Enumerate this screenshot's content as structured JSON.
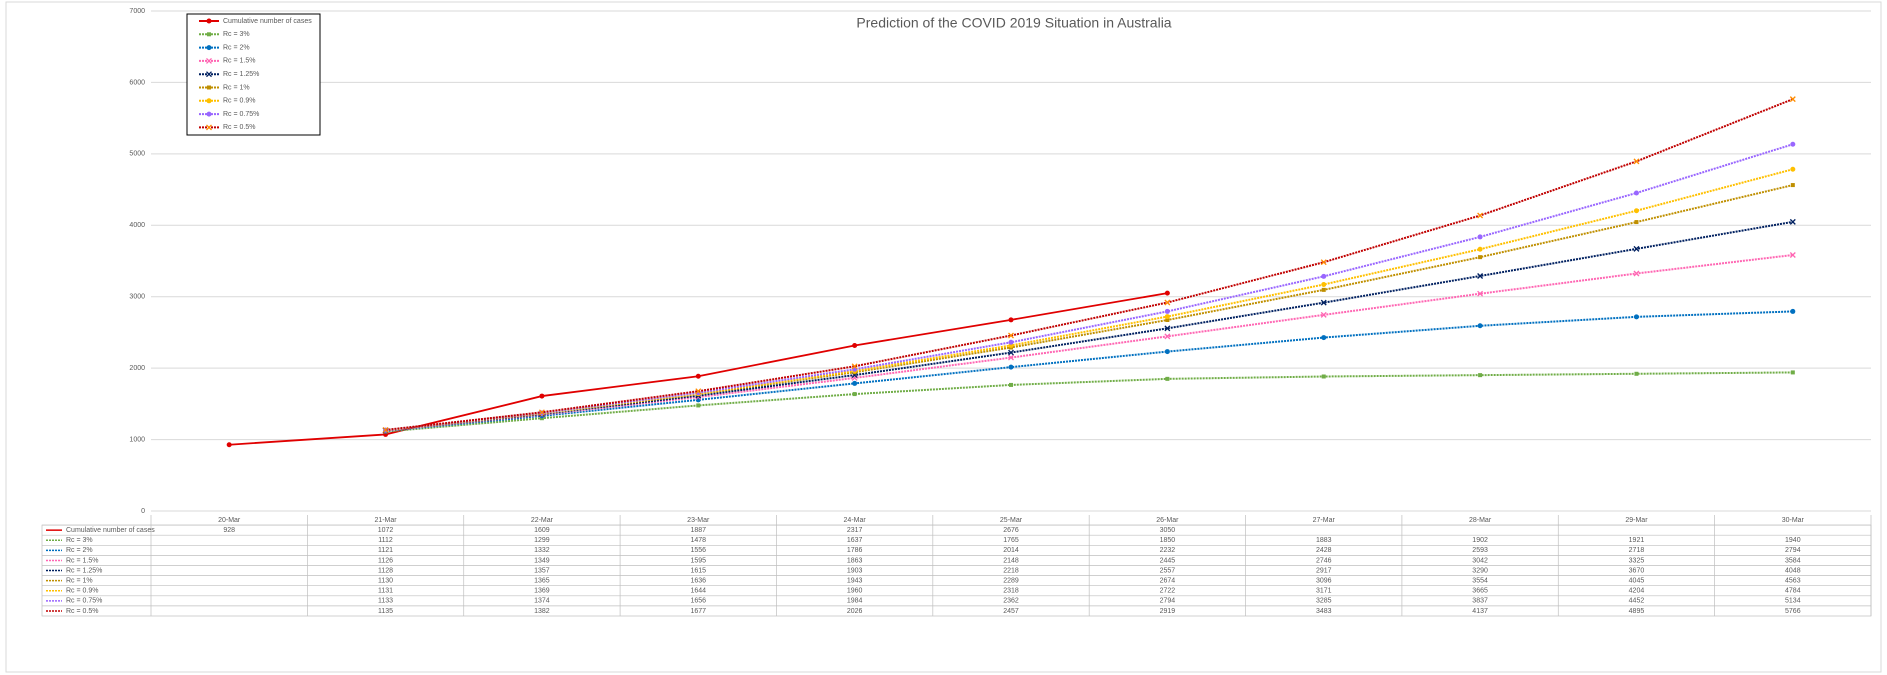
{
  "chart_data": {
    "type": "line",
    "title": "Prediction of the COVID 2019 Situation in Australia",
    "categories": [
      "20-Mar",
      "21-Mar",
      "22-Mar",
      "23-Mar",
      "24-Mar",
      "25-Mar",
      "26-Mar",
      "27-Mar",
      "28-Mar",
      "29-Mar",
      "30-Mar"
    ],
    "series": [
      {
        "name": "Cumulative number of cases",
        "color": "#e00000",
        "dashed": false,
        "marker": "circle",
        "values": [
          928,
          1072,
          1609,
          1887,
          2317,
          2676,
          3050,
          null,
          null,
          null,
          null
        ]
      },
      {
        "name": "Rc = 3%",
        "color": "#70ad47",
        "dashed": true,
        "marker": "square",
        "values": [
          null,
          1112,
          1299,
          1478,
          1637,
          1765,
          1850,
          1883,
          1902,
          1921,
          1940
        ]
      },
      {
        "name": "Rc = 2%",
        "color": "#0070c0",
        "dashed": true,
        "marker": "circle",
        "values": [
          null,
          1121,
          1332,
          1556,
          1786,
          2014,
          2232,
          2428,
          2593,
          2718,
          2794
        ]
      },
      {
        "name": "Rc = 1.5%",
        "color": "#ff66b3",
        "dashed": true,
        "marker": "x",
        "values": [
          null,
          1126,
          1349,
          1595,
          1863,
          2148,
          2445,
          2746,
          3042,
          3325,
          3584
        ]
      },
      {
        "name": "Rc = 1.25%",
        "color": "#002060",
        "dashed": true,
        "marker": "x",
        "values": [
          null,
          1128,
          1357,
          1615,
          1903,
          2218,
          2557,
          2917,
          3290,
          3670,
          4048
        ]
      },
      {
        "name": "Rc = 1%",
        "color": "#bf8f00",
        "dashed": true,
        "marker": "square",
        "values": [
          null,
          1130,
          1365,
          1636,
          1943,
          2289,
          2674,
          3096,
          3554,
          4045,
          4563
        ]
      },
      {
        "name": "Rc = 0.9%",
        "color": "#ffc000",
        "dashed": true,
        "marker": "circle",
        "values": [
          null,
          1131,
          1369,
          1644,
          1960,
          2318,
          2722,
          3171,
          3665,
          4204,
          4784
        ]
      },
      {
        "name": "Rc = 0.75%",
        "color": "#9966ff",
        "dashed": true,
        "marker": "circle",
        "values": [
          null,
          1133,
          1374,
          1656,
          1984,
          2362,
          2794,
          3285,
          3837,
          4452,
          5134
        ]
      },
      {
        "name": "Rc = 0.5%",
        "color": "#c00000",
        "dashed": true,
        "marker": "x",
        "values": [
          null,
          1135,
          1382,
          1677,
          2026,
          2457,
          2919,
          3483,
          4137,
          4895,
          5766
        ]
      }
    ],
    "ylim": [
      0,
      7000
    ],
    "yticks": [
      0,
      1000,
      2000,
      3000,
      4000,
      5000,
      6000,
      7000
    ],
    "grid": true
  }
}
